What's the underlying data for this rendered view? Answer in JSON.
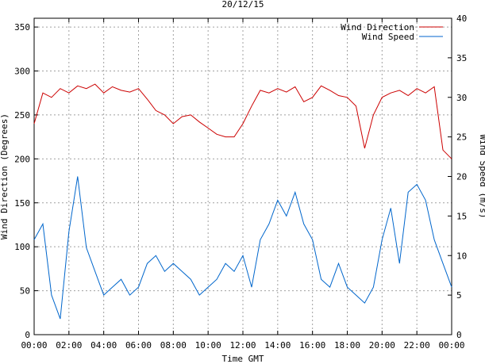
{
  "chart_data": {
    "type": "line",
    "title": "20/12/15",
    "xlabel": "Time GMT",
    "ylabel_left": "Wind Direction (Degrees)",
    "ylabel_right": "Wind Speed (m/s)",
    "x_ticks": [
      "00:00",
      "02:00",
      "04:00",
      "06:00",
      "08:00",
      "10:00",
      "12:00",
      "14:00",
      "16:00",
      "18:00",
      "20:00",
      "22:00",
      "00:00"
    ],
    "x_range_hours": [
      0,
      24
    ],
    "y_left_ticks": [
      "0",
      "50",
      "100",
      "150",
      "200",
      "250",
      "300",
      "350"
    ],
    "y_left_range": [
      0,
      360
    ],
    "y_right_ticks": [
      "0",
      "5",
      "10",
      "15",
      "20",
      "25",
      "30",
      "35",
      "40"
    ],
    "y_right_range": [
      0,
      40
    ],
    "grid": true,
    "legend_position": "top-right",
    "series": [
      {
        "name": "Wind Direction",
        "axis": "left",
        "color": "#cc0000",
        "x": [
          0,
          0.5,
          1,
          1.5,
          2,
          2.5,
          3,
          3.5,
          4,
          4.5,
          5,
          5.5,
          6,
          6.5,
          7,
          7.5,
          8,
          8.5,
          9,
          9.5,
          10,
          10.5,
          11,
          11.5,
          12,
          12.5,
          13,
          13.5,
          14,
          14.5,
          15,
          15.5,
          16,
          16.5,
          17,
          17.5,
          18,
          18.5,
          19,
          19.5,
          20,
          20.5,
          21,
          21.5,
          22,
          22.5,
          23,
          23.5,
          24
        ],
        "values": [
          240,
          275,
          270,
          280,
          275,
          283,
          280,
          285,
          275,
          282,
          278,
          276,
          280,
          268,
          255,
          250,
          240,
          248,
          250,
          242,
          235,
          228,
          225,
          225,
          240,
          260,
          278,
          275,
          280,
          276,
          282,
          265,
          270,
          283,
          278,
          272,
          270,
          260,
          212,
          250,
          270,
          275,
          278,
          272,
          280,
          275,
          282,
          210,
          200
        ]
      },
      {
        "name": "Wind Speed",
        "axis": "right",
        "color": "#0066cc",
        "x": [
          0,
          0.5,
          1,
          1.5,
          2,
          2.5,
          3,
          3.5,
          4,
          4.5,
          5,
          5.5,
          6,
          6.5,
          7,
          7.5,
          8,
          8.5,
          9,
          9.5,
          10,
          10.5,
          11,
          11.5,
          12,
          12.5,
          13,
          13.5,
          14,
          14.5,
          15,
          15.5,
          16,
          16.5,
          17,
          17.5,
          18,
          18.5,
          19,
          19.5,
          20,
          20.5,
          21,
          21.5,
          22,
          22.5,
          23,
          23.5,
          24
        ],
        "values": [
          12,
          14,
          5,
          2,
          13,
          20,
          11,
          8,
          5,
          6,
          7,
          5,
          6,
          9,
          10,
          8,
          9,
          8,
          7,
          5,
          6,
          7,
          9,
          8,
          10,
          6,
          12,
          14,
          17,
          15,
          18,
          14,
          12,
          7,
          6,
          9,
          6,
          5,
          4,
          6,
          12,
          16,
          9,
          18,
          19,
          17,
          12,
          9,
          6
        ]
      }
    ]
  }
}
